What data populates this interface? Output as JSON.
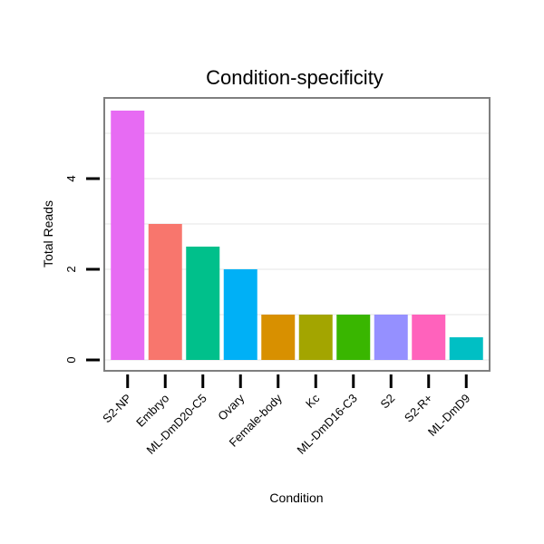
{
  "chart_data": {
    "type": "bar",
    "title": "Condition-specificity",
    "xlabel": "Condition",
    "ylabel": "Total Reads",
    "categories": [
      "S2-NP",
      "Embryo",
      "ML-DmD20-C5",
      "Ovary",
      "Female-body",
      "Kc",
      "ML-DmD16-C3",
      "S2",
      "S2-R+",
      "ML-DmD9"
    ],
    "values": [
      5.5,
      3,
      2.5,
      2,
      1,
      1,
      1,
      1,
      1,
      0.5
    ],
    "colors": [
      "#E76BF3",
      "#F8766D",
      "#00C08B",
      "#00B0F6",
      "#D89000",
      "#A3A500",
      "#39B600",
      "#9590FF",
      "#FF62BC",
      "#00BFC4"
    ],
    "yticks": [
      0,
      2,
      4
    ],
    "ylim": [
      -0.25,
      5.78
    ],
    "legend": "none",
    "grid": true
  }
}
